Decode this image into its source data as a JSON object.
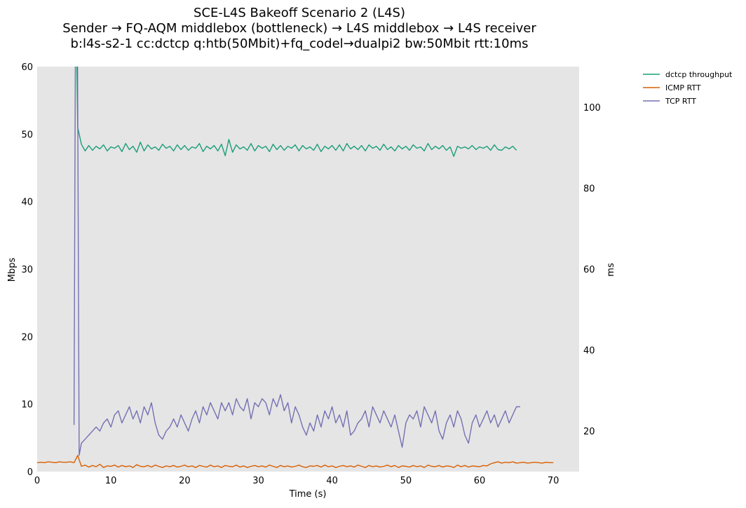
{
  "chart_data": {
    "type": "line",
    "title": [
      "SCE-L4S Bakeoff Scenario 2 (L4S)",
      "Sender → FQ-AQM middlebox (bottleneck) → L4S middlebox → L4S receiver",
      "b:l4s-s2-1 cc:dctcp q:htb(50Mbit)+fq_codel→dualpi2 bw:50Mbit rtt:10ms"
    ],
    "xlabel": "Time (s)",
    "ylabel": "Mbps",
    "y2label": "ms",
    "xlim": [
      0,
      73.5
    ],
    "ylim": [
      0,
      60
    ],
    "y2lim": [
      10,
      110
    ],
    "xticks": [
      "0",
      "10",
      "20",
      "30",
      "40",
      "50",
      "60",
      "70"
    ],
    "yticks": [
      "0",
      "10",
      "20",
      "30",
      "40",
      "50",
      "60"
    ],
    "y2ticks": [
      "20",
      "40",
      "60",
      "80",
      "100"
    ],
    "grid": false,
    "background": "#e5e5e5",
    "legend_placement": "outside-top-right",
    "series": [
      {
        "name": "dctcp throughput",
        "axis": "left",
        "color": "#1b9e77",
        "lead": [
          [
            5.35,
            62
          ]
        ],
        "start": 5.5,
        "step": 0.5,
        "values": [
          51,
          48.5,
          47.5,
          48.3,
          47.6,
          48.2,
          47.8,
          48.4,
          47.5,
          48.1,
          47.9,
          48.3,
          47.4,
          48.6,
          47.7,
          48.2,
          47.3,
          48.8,
          47.5,
          48.4,
          47.8,
          48.1,
          47.6,
          48.5,
          47.9,
          48.2,
          47.5,
          48.4,
          47.7,
          48.3,
          47.6,
          48.1,
          47.9,
          48.6,
          47.4,
          48.2,
          47.8,
          48.3,
          47.5,
          48.5,
          46.8,
          49.2,
          47.3,
          48.4,
          47.8,
          48.1,
          47.6,
          48.6,
          47.5,
          48.3,
          47.9,
          48.2,
          47.4,
          48.5,
          47.7,
          48.3,
          47.6,
          48.2,
          47.9,
          48.4,
          47.5,
          48.3,
          47.8,
          48.1,
          47.6,
          48.5,
          47.4,
          48.2,
          47.8,
          48.3,
          47.6,
          48.4,
          47.5,
          48.6,
          47.8,
          48.2,
          47.7,
          48.3,
          47.5,
          48.4,
          47.9,
          48.2,
          47.6,
          48.5,
          47.7,
          48.1,
          47.5,
          48.3,
          47.8,
          48.2,
          47.6,
          48.4,
          47.9,
          48.1,
          47.5,
          48.6,
          47.7,
          48.2,
          47.8,
          48.3,
          47.6,
          48.1,
          46.7,
          48.2,
          47.9,
          48.1,
          47.8,
          48.3,
          47.7,
          48.1,
          47.9,
          48.2,
          47.6,
          48.4,
          47.7,
          47.6,
          48.1,
          47.8,
          48.2,
          47.6
        ]
      },
      {
        "name": "ICMP RTT",
        "axis": "right",
        "color": "#d95f02",
        "lead": [],
        "start": 0,
        "step": 0.5,
        "values": [
          12.2,
          12.3,
          12.2,
          12.4,
          12.3,
          12.2,
          12.4,
          12.3,
          12.3,
          12.4,
          12.2,
          14.0,
          11.3,
          11.6,
          11.1,
          11.5,
          11.2,
          11.8,
          11.0,
          11.4,
          11.3,
          11.6,
          11.1,
          11.5,
          11.2,
          11.4,
          11.0,
          11.7,
          11.3,
          11.2,
          11.5,
          11.1,
          11.6,
          11.3,
          11.0,
          11.4,
          11.2,
          11.5,
          11.1,
          11.3,
          11.6,
          11.2,
          11.4,
          11.0,
          11.5,
          11.3,
          11.1,
          11.6,
          11.2,
          11.4,
          11.0,
          11.5,
          11.3,
          11.2,
          11.6,
          11.1,
          11.4,
          11.0,
          11.3,
          11.5,
          11.2,
          11.4,
          11.1,
          11.6,
          11.3,
          11.0,
          11.5,
          11.2,
          11.4,
          11.1,
          11.3,
          11.6,
          11.2,
          11.0,
          11.4,
          11.3,
          11.5,
          11.1,
          11.6,
          11.2,
          11.4,
          11.0,
          11.3,
          11.5,
          11.2,
          11.4,
          11.1,
          11.6,
          11.3,
          11.0,
          11.5,
          11.2,
          11.4,
          11.1,
          11.3,
          11.6,
          11.2,
          11.5,
          11.0,
          11.4,
          11.3,
          11.1,
          11.5,
          11.2,
          11.4,
          11.0,
          11.6,
          11.3,
          11.2,
          11.5,
          11.1,
          11.4,
          11.3,
          11.0,
          11.6,
          11.2,
          11.5,
          11.1,
          11.4,
          11.3,
          11.2,
          11.5,
          11.4,
          11.9,
          12.2,
          12.4,
          12.1,
          12.3,
          12.2,
          12.4,
          12.1,
          12.2,
          12.3,
          12.1,
          12.2,
          12.3,
          12.2,
          12.1,
          12.3,
          12.2,
          12.2
        ]
      },
      {
        "name": "TCP RTT",
        "axis": "right",
        "color": "#7570b3",
        "lead": [
          [
            5.0,
            21.5
          ],
          [
            5.2,
            125
          ],
          [
            5.45,
            125
          ],
          [
            5.7,
            14
          ]
        ],
        "start": 6.0,
        "step": 0.5,
        "values": [
          17,
          18,
          19,
          20,
          21,
          20,
          22,
          23,
          21,
          24,
          25,
          22,
          24,
          26,
          23,
          25,
          22,
          26,
          24,
          27,
          22,
          19,
          18,
          20,
          21,
          23,
          21,
          24,
          22,
          20,
          23,
          25,
          22,
          26,
          24,
          27,
          25,
          23,
          27,
          25,
          27,
          24,
          28,
          26,
          25,
          28,
          23,
          27,
          26,
          28,
          27,
          24,
          28,
          26,
          29,
          25,
          27,
          22,
          26,
          24,
          21,
          19,
          22,
          20,
          24,
          21,
          25,
          23,
          26,
          22,
          24,
          21,
          25,
          19,
          20,
          22,
          23,
          25,
          21,
          26,
          24,
          22,
          25,
          23,
          21,
          24,
          20,
          16,
          22,
          24,
          23,
          25,
          21,
          26,
          24,
          22,
          25,
          20,
          18,
          22,
          24,
          21,
          25,
          23,
          19,
          17,
          22,
          24,
          21,
          23,
          25,
          22,
          24,
          21,
          23,
          25,
          22,
          24,
          26,
          26
        ]
      }
    ]
  }
}
